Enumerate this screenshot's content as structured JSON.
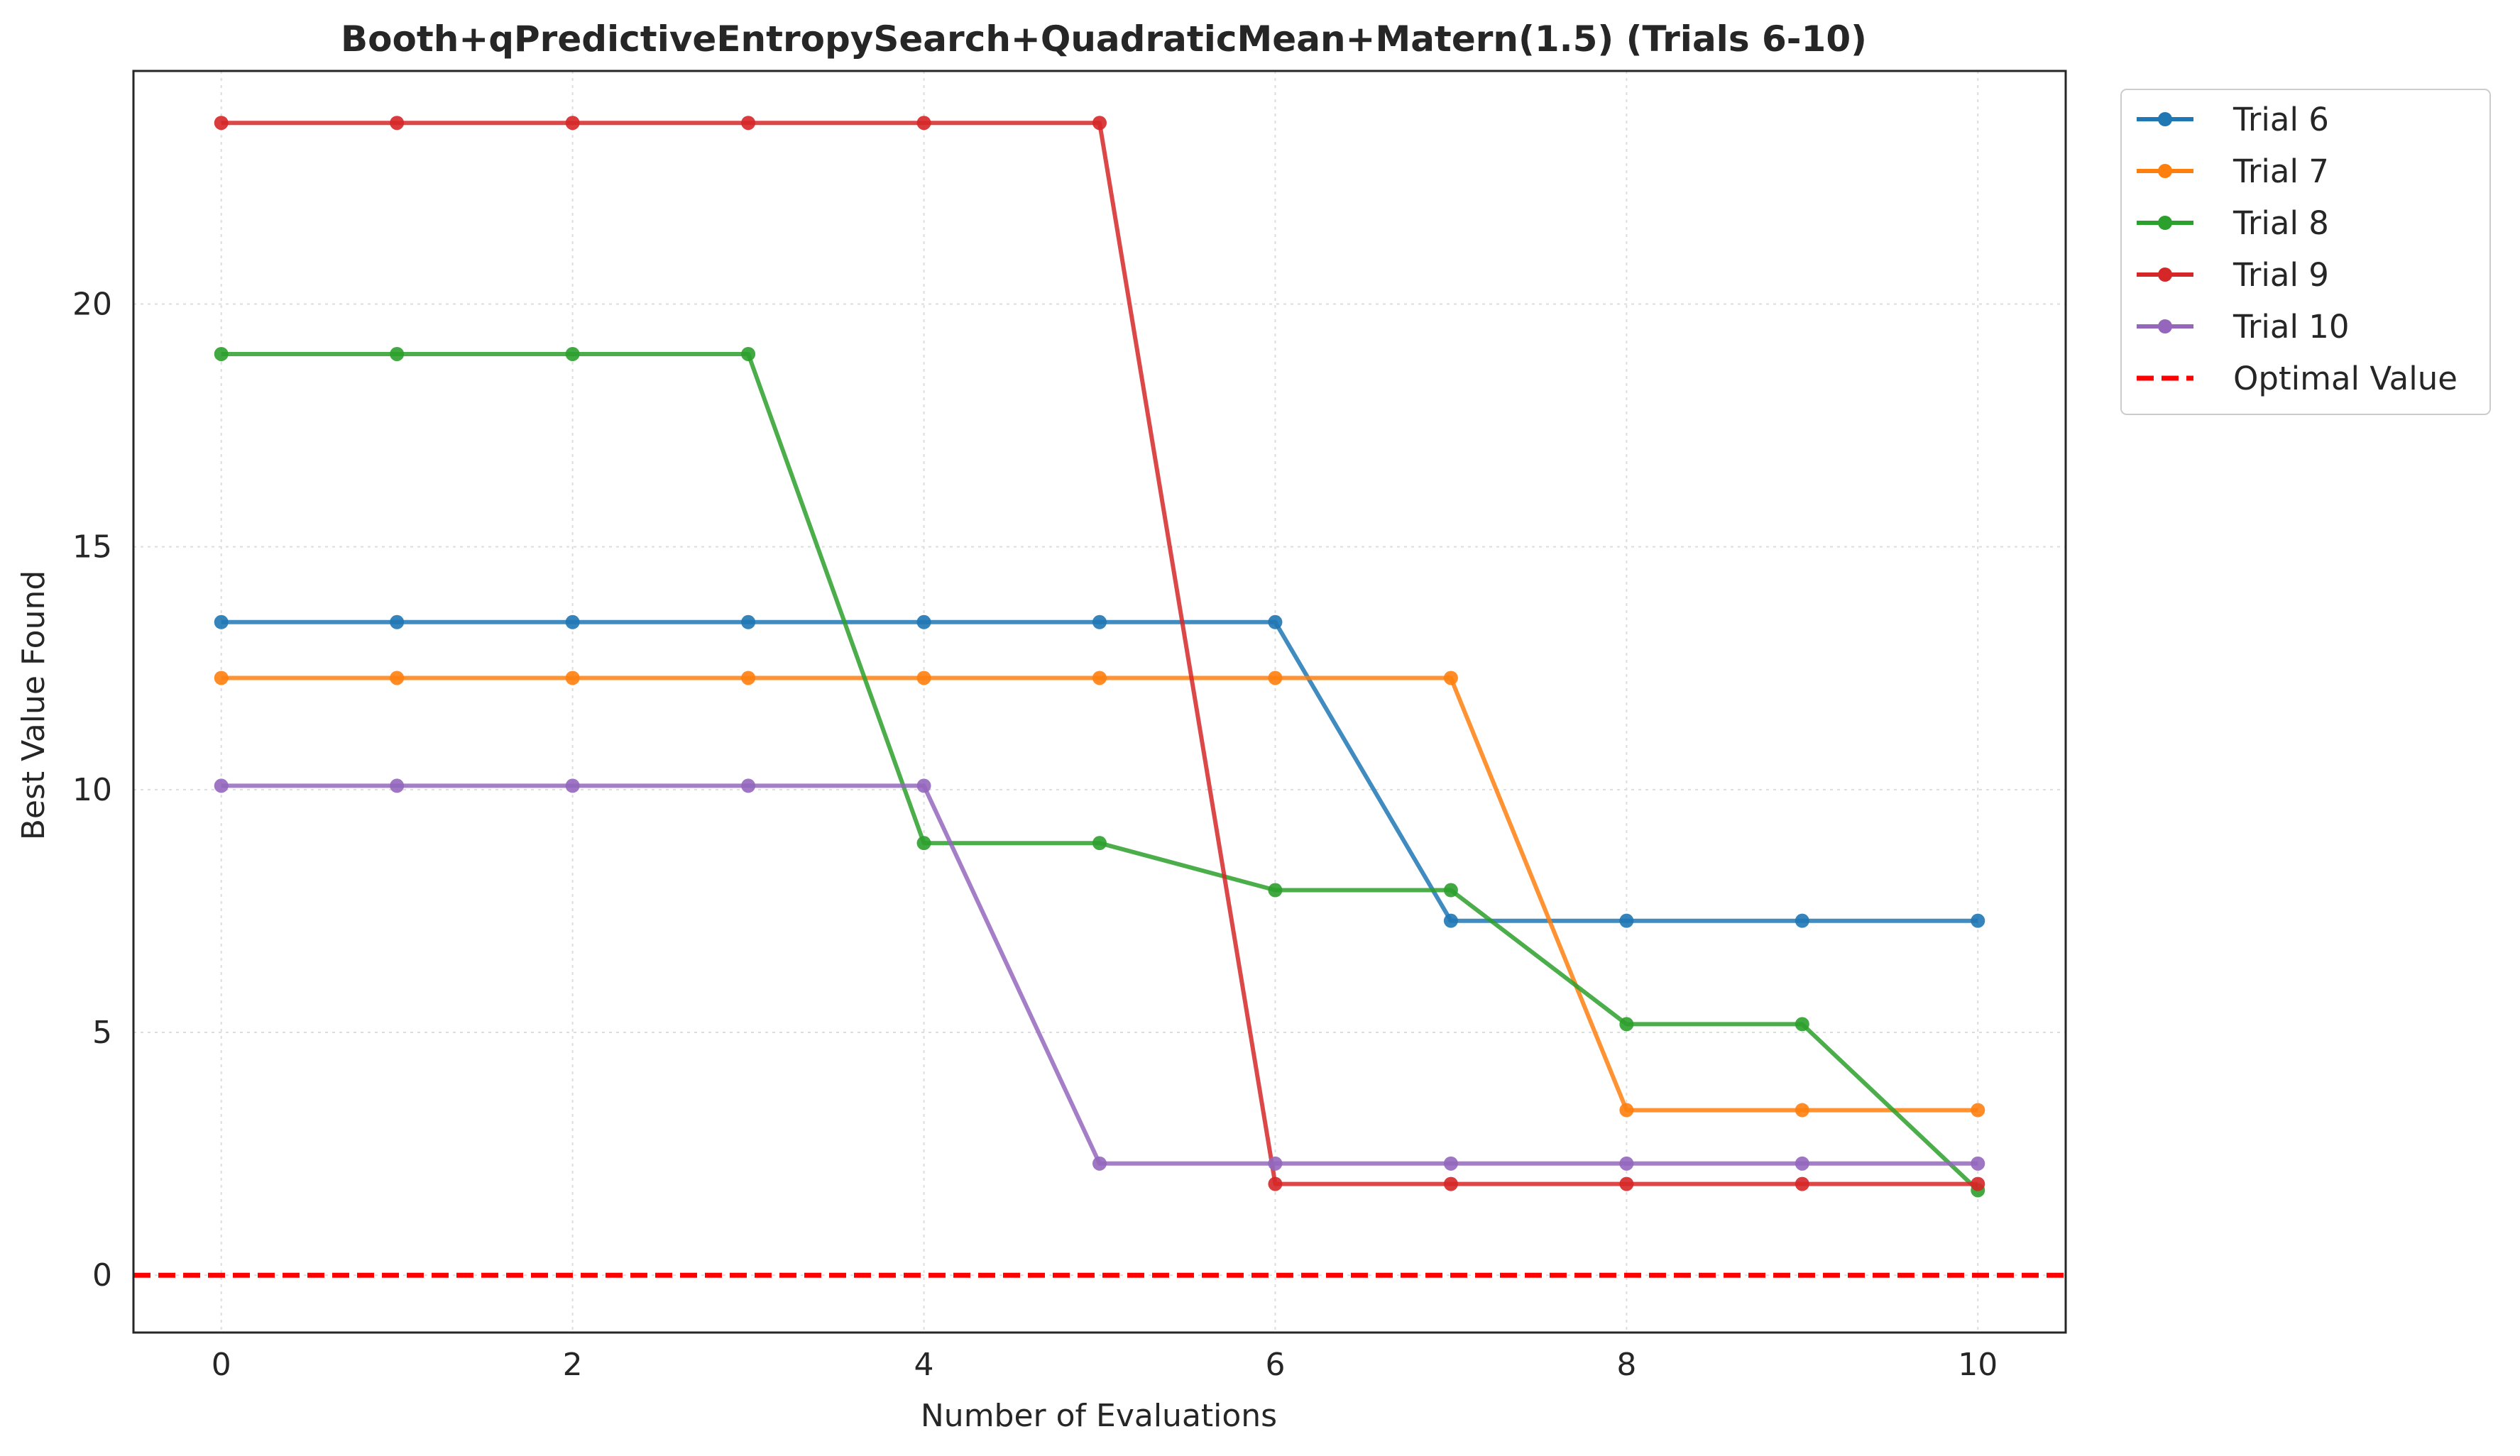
{
  "chart_data": {
    "type": "line",
    "title": "Booth+qPredictiveEntropySearch+QuadraticMean+Matern(1.5) (Trials 6-10)",
    "xlabel": "Number of Evaluations",
    "ylabel": "Best Value Found",
    "xlim": [
      -0.5,
      10.5
    ],
    "ylim": [
      -1.18,
      24.8
    ],
    "xticks": [
      0,
      2,
      4,
      6,
      8,
      10
    ],
    "yticks": [
      0,
      5,
      10,
      15,
      20
    ],
    "grid": true,
    "legend_position": "outside-top-right",
    "x": [
      0,
      1,
      2,
      3,
      4,
      5,
      6,
      7,
      8,
      9,
      10
    ],
    "series": [
      {
        "name": "Trial 6",
        "color": "#1f77b4",
        "values": [
          13.45,
          13.45,
          13.45,
          13.45,
          13.45,
          13.45,
          13.45,
          7.3,
          7.3,
          7.3,
          7.3
        ]
      },
      {
        "name": "Trial 7",
        "color": "#ff7f0e",
        "values": [
          12.3,
          12.3,
          12.3,
          12.3,
          12.3,
          12.3,
          12.3,
          12.3,
          3.4,
          3.4,
          3.4
        ]
      },
      {
        "name": "Trial 8",
        "color": "#2ca02c",
        "values": [
          18.97,
          18.97,
          18.97,
          18.97,
          8.9,
          8.9,
          7.93,
          7.93,
          5.17,
          5.17,
          1.75
        ]
      },
      {
        "name": "Trial 9",
        "color": "#d62728",
        "values": [
          23.73,
          23.73,
          23.73,
          23.73,
          23.73,
          23.73,
          1.88,
          1.88,
          1.88,
          1.88,
          1.88
        ]
      },
      {
        "name": "Trial 10",
        "color": "#9467bd",
        "values": [
          10.08,
          10.08,
          10.08,
          10.08,
          10.08,
          2.3,
          2.3,
          2.3,
          2.3,
          2.3,
          2.3
        ]
      }
    ],
    "reference_line": {
      "name": "Optimal Value",
      "value": 0,
      "color": "#ff0000",
      "style": "dashed"
    }
  }
}
